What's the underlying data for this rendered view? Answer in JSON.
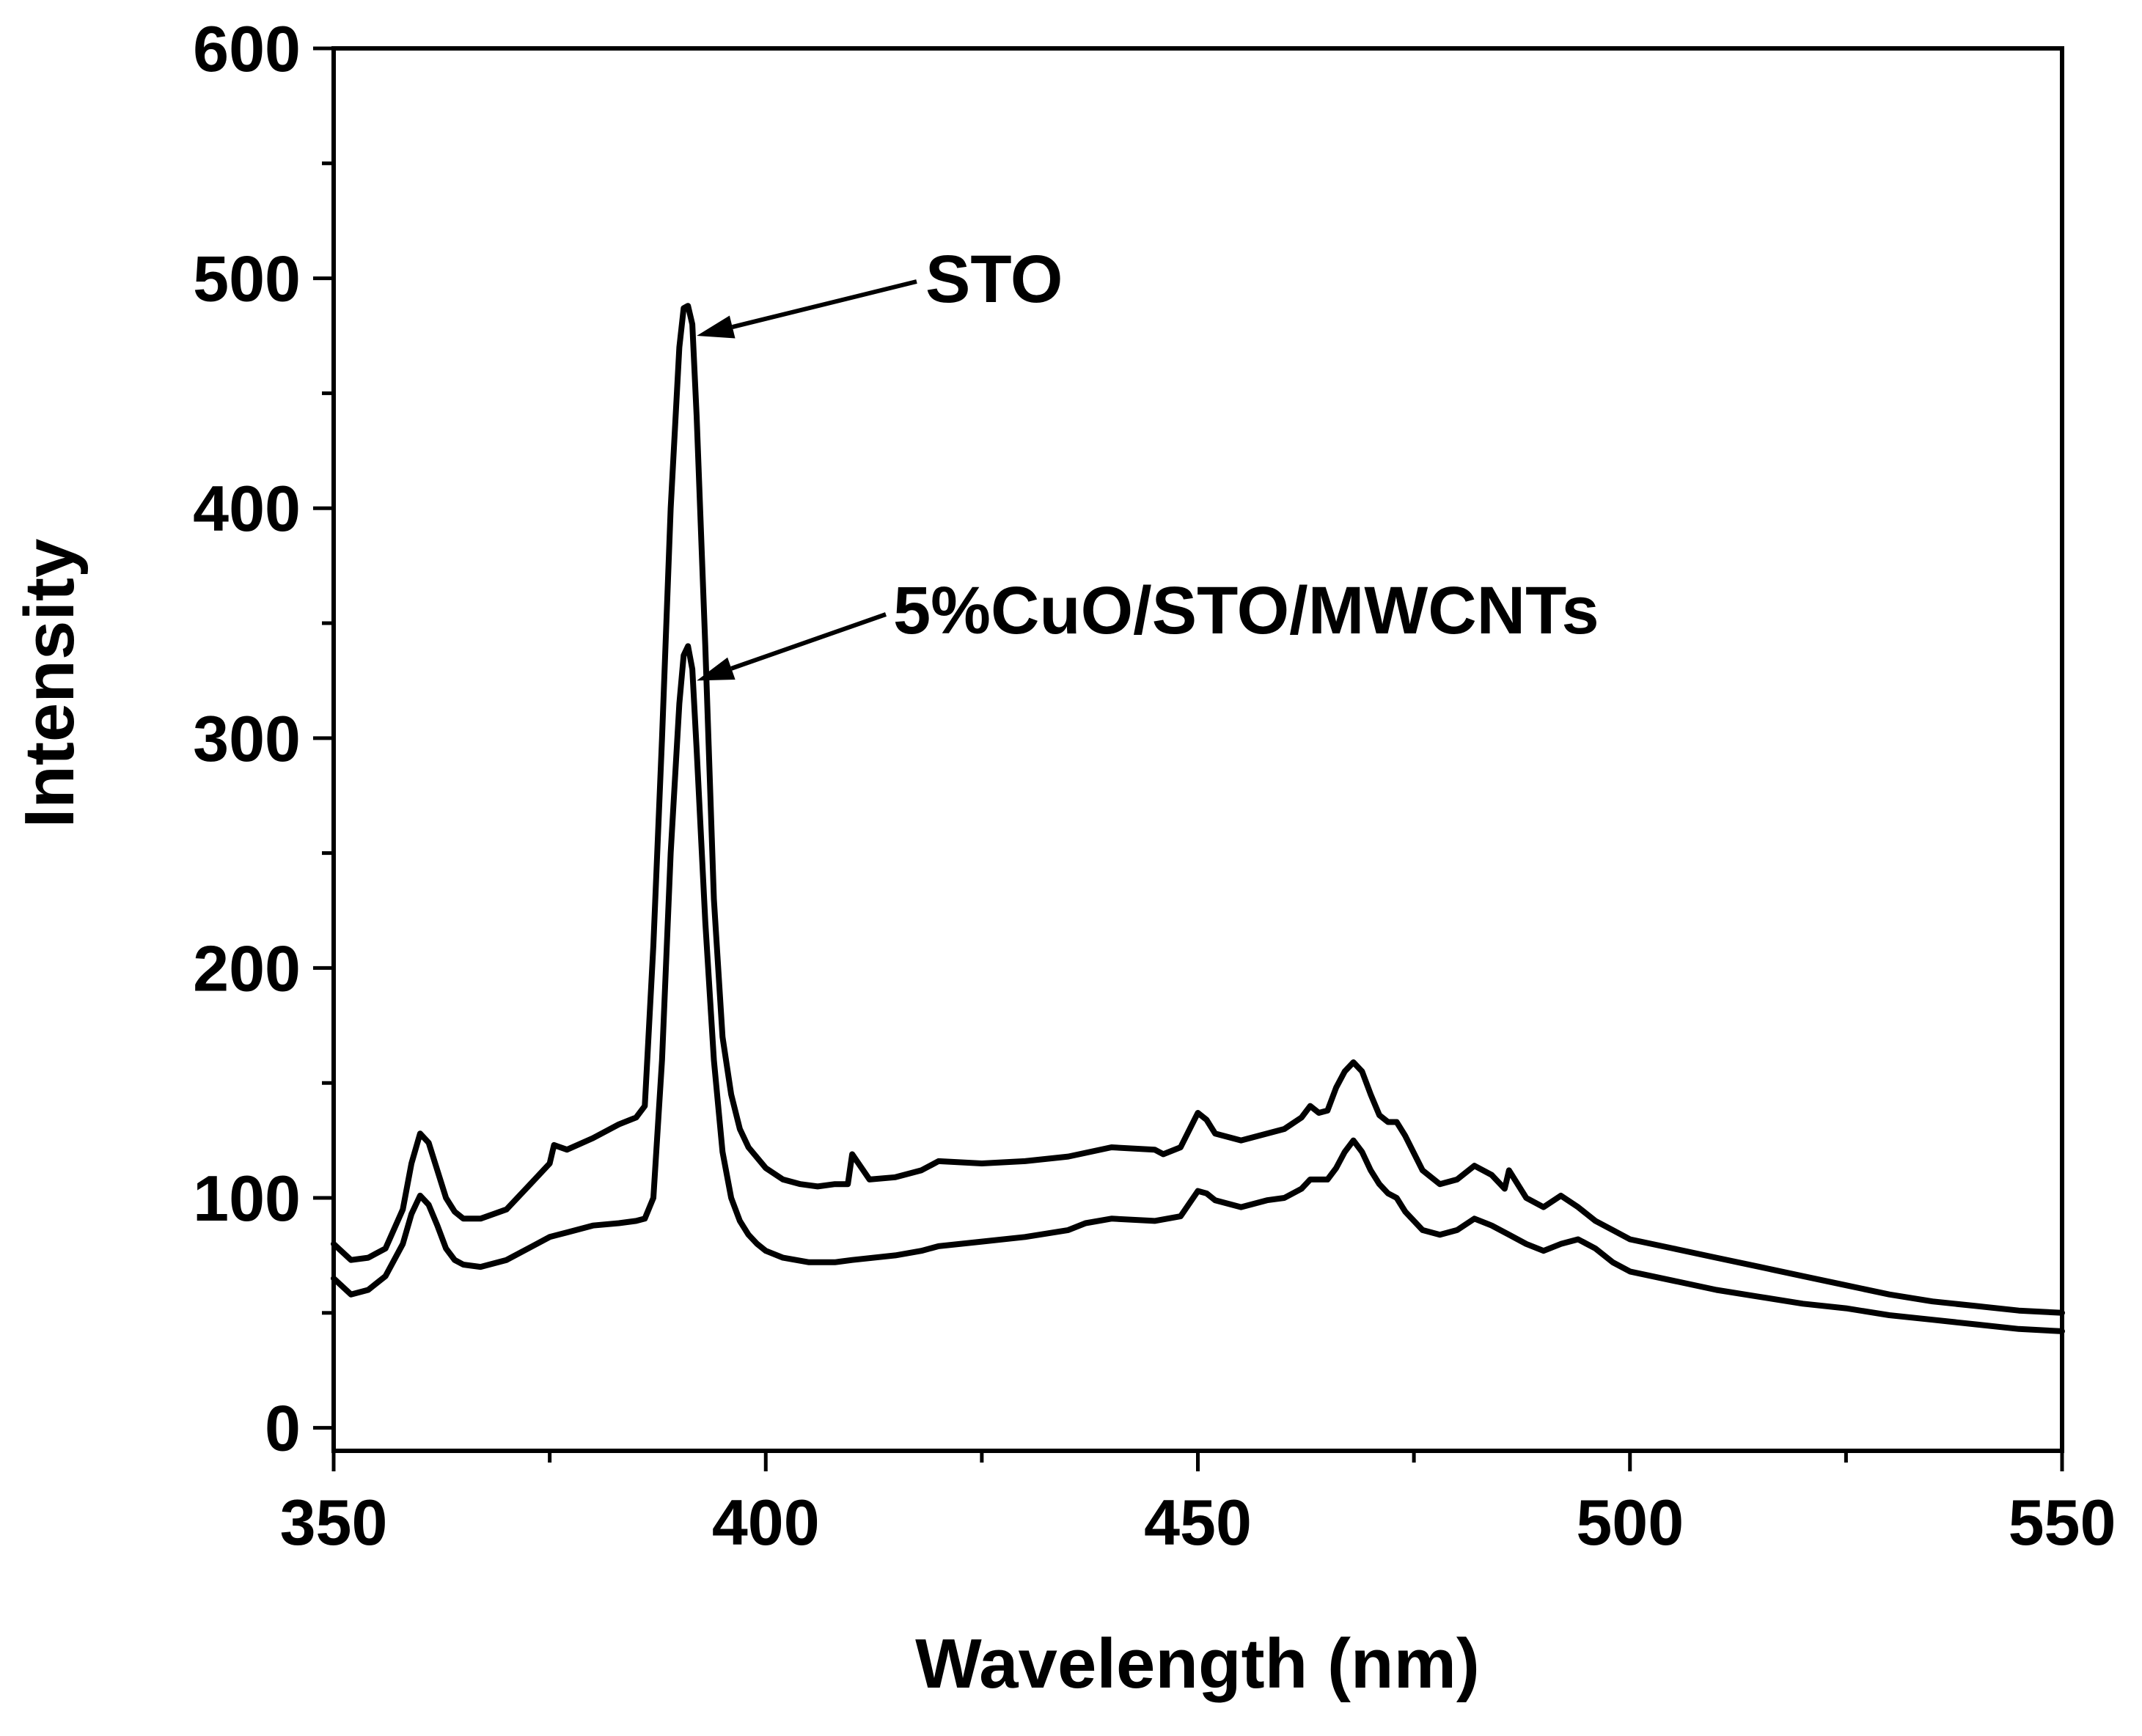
{
  "chart_data": {
    "type": "line",
    "title": "",
    "xlabel": "Wavelength (nm)",
    "ylabel": "Intensity",
    "xlim": [
      350,
      550
    ],
    "ylim": [
      -10,
      600
    ],
    "x_ticks": [
      350,
      400,
      450,
      500,
      550
    ],
    "y_ticks": [
      0,
      100,
      200,
      300,
      400,
      500,
      600
    ],
    "x_tick_labels": [
      "350",
      "400",
      "450",
      "500",
      "550"
    ],
    "y_tick_labels": [
      "0",
      "100",
      "200",
      "300",
      "400",
      "500",
      "600"
    ],
    "x_minor_step": 25,
    "y_minor_step": 50,
    "grid": false,
    "series": [
      {
        "name": "STO",
        "x": [
          350,
          352,
          354,
          356,
          358,
          359,
          360,
          361,
          362,
          363,
          364,
          365,
          367,
          370,
          373,
          375,
          375.5,
          377,
          380,
          383,
          385,
          386,
          387,
          388,
          389,
          390,
          390.5,
          391,
          391.5,
          392,
          393,
          394,
          395,
          396,
          397,
          398,
          400,
          402,
          404,
          406,
          408,
          409.5,
          410,
          412,
          415,
          418,
          420,
          425,
          430,
          435,
          440,
          445,
          446,
          448,
          450,
          451,
          452,
          455,
          458,
          460,
          462,
          463,
          464,
          465,
          466,
          467,
          468,
          469,
          470,
          471,
          472,
          473,
          474,
          476,
          478,
          480,
          482,
          484,
          485.5,
          486,
          488,
          490,
          492,
          494,
          496,
          498,
          500,
          505,
          510,
          515,
          520,
          525,
          530,
          535,
          540,
          545,
          550
        ],
        "y": [
          80,
          73,
          74,
          78,
          95,
          115,
          128,
          124,
          112,
          100,
          94,
          91,
          91,
          95,
          107,
          115,
          123,
          121,
          126,
          132,
          135,
          140,
          210,
          300,
          400,
          470,
          487,
          488,
          480,
          440,
          340,
          230,
          170,
          145,
          130,
          122,
          113,
          108,
          106,
          105,
          106,
          106,
          119,
          108,
          109,
          112,
          116,
          115,
          116,
          118,
          122,
          121,
          119,
          122,
          137,
          134,
          128,
          125,
          128,
          130,
          135,
          140,
          137,
          138,
          148,
          155,
          159,
          155,
          145,
          136,
          133,
          133,
          127,
          112,
          106,
          108,
          114,
          110,
          104,
          112,
          100,
          96,
          101,
          96,
          90,
          86,
          82,
          78,
          74,
          70,
          66,
          62,
          58,
          55,
          53,
          51,
          50
        ]
      },
      {
        "name": "5%CuO/STO/MWCNTs",
        "x": [
          350,
          352,
          354,
          356,
          358,
          359,
          360,
          361,
          362,
          363,
          364,
          365,
          367,
          370,
          373,
          375,
          377,
          380,
          383,
          385,
          386,
          387,
          388,
          389,
          390,
          390.5,
          391,
          391.5,
          392,
          393,
          394,
          395,
          396,
          397,
          398,
          399,
          400,
          402,
          405,
          408,
          410,
          415,
          418,
          420,
          425,
          430,
          435,
          437,
          440,
          445,
          448,
          450,
          451,
          452,
          455,
          458,
          460,
          462,
          463,
          465,
          466,
          467,
          468,
          469,
          470,
          471,
          472,
          473,
          474,
          476,
          478,
          480,
          482,
          484,
          486,
          488,
          490,
          492,
          494,
          496,
          498,
          500,
          505,
          510,
          515,
          520,
          525,
          530,
          535,
          540,
          545,
          550
        ],
        "y": [
          65,
          58,
          60,
          66,
          80,
          93,
          101,
          97,
          88,
          78,
          73,
          71,
          70,
          73,
          79,
          83,
          85,
          88,
          89,
          90,
          91,
          100,
          160,
          250,
          315,
          336,
          340,
          330,
          295,
          220,
          160,
          120,
          100,
          90,
          84,
          80,
          77,
          74,
          72,
          72,
          73,
          75,
          77,
          79,
          81,
          83,
          86,
          89,
          91,
          90,
          92,
          103,
          102,
          99,
          96,
          99,
          100,
          104,
          108,
          108,
          113,
          120,
          125,
          120,
          112,
          106,
          102,
          100,
          94,
          86,
          84,
          86,
          91,
          88,
          84,
          80,
          77,
          80,
          82,
          78,
          72,
          68,
          64,
          60,
          57,
          54,
          52,
          49,
          47,
          45,
          43,
          42
        ]
      }
    ],
    "annotations": [
      {
        "text": "STO",
        "series": "STO",
        "points_to_x": 391,
        "points_to_y": 475
      },
      {
        "text": "5%CuO/STO/MWCNTs",
        "series": "5%CuO/STO/MWCNTs",
        "points_to_x": 391,
        "points_to_y": 325
      }
    ]
  }
}
